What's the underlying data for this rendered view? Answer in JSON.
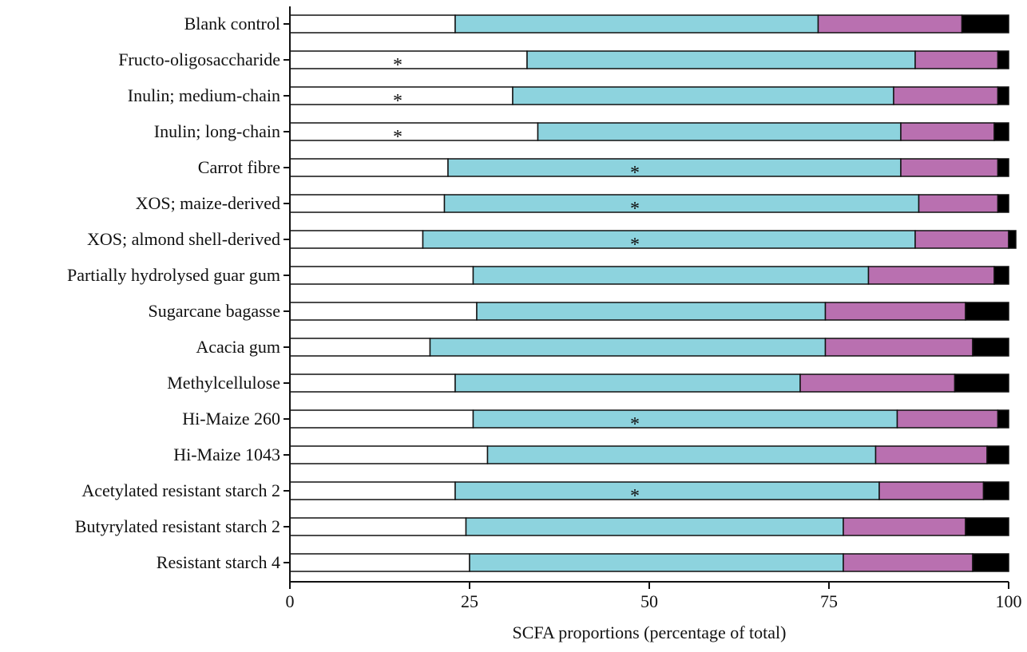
{
  "chart_data": {
    "type": "bar",
    "orientation": "horizontal",
    "stacked": true,
    "xlabel": "SCFA proportions (percentage of total)",
    "ylabel": "",
    "title": "",
    "xlim": [
      0,
      100
    ],
    "xticks": [
      "0",
      "25",
      "50",
      "75",
      "100"
    ],
    "grid": false,
    "legend": "none",
    "categories": [
      "Blank control",
      "Fructo-oligosaccharide",
      "Inulin; medium-chain",
      "Inulin; long-chain",
      "Carrot fibre",
      "XOS; maize-derived",
      "XOS; almond shell-derived",
      "Partially hydrolysed guar gum",
      "Sugarcane bagasse",
      "Acacia gum",
      "Methylcellulose",
      "Hi-Maize 260",
      "Hi-Maize 1043",
      "Acetylated resistant starch 2",
      "Butyrylated resistant starch 2",
      "Resistant starch 4"
    ],
    "series": [
      {
        "color": "#ffffff",
        "values": [
          23,
          33,
          31,
          34.5,
          22,
          21.5,
          18.5,
          25.5,
          26,
          19.5,
          23,
          25.5,
          27.5,
          23,
          24.5,
          25
        ]
      },
      {
        "color": "#8dd3de",
        "values": [
          50.5,
          54,
          53,
          50.5,
          63,
          66,
          68.5,
          55,
          48.5,
          55,
          48,
          59,
          54,
          59,
          52.5,
          52
        ]
      },
      {
        "color": "#b970b0",
        "values": [
          20,
          11.5,
          14.5,
          13,
          13.5,
          11,
          13,
          17.5,
          19.5,
          20.5,
          21.5,
          14,
          15.5,
          14.5,
          17,
          18
        ]
      },
      {
        "color": "#000000",
        "values": [
          6.5,
          1.5,
          1.5,
          2,
          1.5,
          1.5,
          1,
          2,
          6,
          5,
          7.5,
          1.5,
          3,
          3.5,
          6,
          5
        ]
      }
    ],
    "annotations": [
      {
        "category": "Fructo-oligosaccharide",
        "text": "*",
        "x": 15
      },
      {
        "category": "Inulin; medium-chain",
        "text": "*",
        "x": 15
      },
      {
        "category": "Inulin; long-chain",
        "text": "*",
        "x": 15
      },
      {
        "category": "Carrot fibre",
        "text": "*",
        "x": 48
      },
      {
        "category": "XOS; maize-derived",
        "text": "*",
        "x": 48
      },
      {
        "category": "XOS; almond shell-derived",
        "text": "*",
        "x": 48
      },
      {
        "category": "Hi-Maize 260",
        "text": "*",
        "x": 48
      },
      {
        "category": "Acetylated resistant starch 2",
        "text": "*",
        "x": 48
      }
    ]
  }
}
